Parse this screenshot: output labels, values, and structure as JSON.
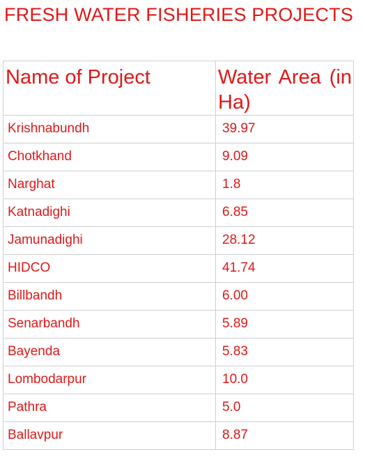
{
  "title": "FRESH WATER FISHERIES PROJECTS",
  "table": {
    "headers": [
      "Name of Project",
      "Water Area (in Ha)"
    ],
    "rows": [
      [
        "Krishnabundh",
        "39.97"
      ],
      [
        "Chotkhand",
        "9.09"
      ],
      [
        "Narghat",
        "1.8"
      ],
      [
        "Katnadighi",
        "6.85"
      ],
      [
        "Jamunadighi",
        "28.12"
      ],
      [
        "HIDCO",
        "41.74"
      ],
      [
        "Billbandh",
        "6.00"
      ],
      [
        "Senarbandh",
        "5.89"
      ],
      [
        "Bayenda",
        "5.83"
      ],
      [
        "Lombodarpur",
        "10.0"
      ],
      [
        "Pathra",
        "5.0"
      ],
      [
        "Ballavpur",
        "8.87"
      ]
    ]
  },
  "colors": {
    "text": "#e01818",
    "border": "#cfcfcf",
    "background": "#ffffff"
  }
}
